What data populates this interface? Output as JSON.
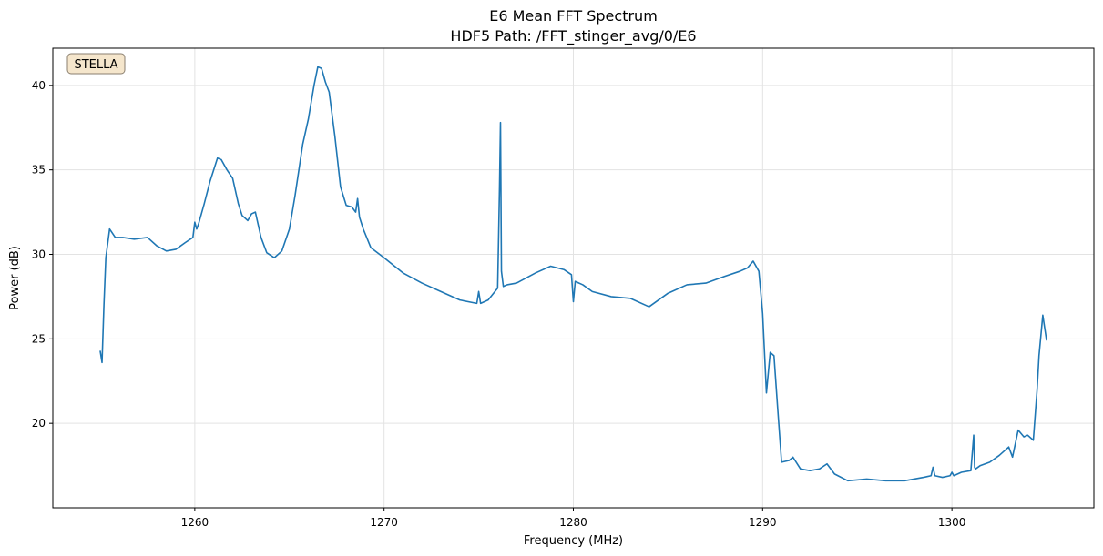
{
  "chart_data": {
    "type": "line",
    "title": "E6 Mean FFT Spectrum",
    "subtitle": "HDF5 Path: /FFT_stinger_avg/0/E6",
    "xlabel": "Frequency (MHz)",
    "ylabel": "Power (dB)",
    "xlim": [
      1252.5,
      1307.5
    ],
    "ylim": [
      15.0,
      42.2
    ],
    "xticks": [
      1260,
      1270,
      1280,
      1290,
      1300
    ],
    "yticks": [
      20,
      25,
      30,
      35,
      40
    ],
    "grid": true,
    "legend": "none",
    "annotation": "STELLA",
    "colors": {
      "line": "#1f77b4",
      "badge_fill": "#f5e6cc",
      "badge_stroke": "#8a7f6f",
      "grid": "#e3e3e3"
    },
    "series": [
      {
        "x": [
          1255.0,
          1255.1,
          1255.2,
          1255.3,
          1255.5,
          1255.8,
          1256.2,
          1256.8,
          1257.5,
          1258.0,
          1258.5,
          1259.0,
          1259.5,
          1259.9,
          1260.0,
          1260.1,
          1260.2,
          1260.5,
          1260.8,
          1261.0,
          1261.2,
          1261.4,
          1261.7,
          1262.0,
          1262.3,
          1262.5,
          1262.8,
          1263.0,
          1263.2,
          1263.5,
          1263.8,
          1264.2,
          1264.6,
          1265.0,
          1265.3,
          1265.7,
          1266.0,
          1266.3,
          1266.5,
          1266.7,
          1266.9,
          1267.1,
          1267.4,
          1267.7,
          1268.0,
          1268.3,
          1268.5,
          1268.6,
          1268.7,
          1268.9,
          1269.3,
          1270.0,
          1271.0,
          1272.0,
          1273.0,
          1274.0,
          1274.9,
          1275.0,
          1275.1,
          1275.5,
          1276.0,
          1276.1,
          1276.15,
          1276.2,
          1276.3,
          1276.5,
          1277.0,
          1278.0,
          1278.8,
          1279.5,
          1279.9,
          1280.0,
          1280.1,
          1280.5,
          1281.0,
          1282.0,
          1283.0,
          1284.0,
          1285.0,
          1286.0,
          1287.0,
          1288.0,
          1288.8,
          1289.2,
          1289.5,
          1289.8,
          1290.0,
          1290.2,
          1290.4,
          1290.6,
          1290.8,
          1291.0,
          1291.4,
          1291.6,
          1292.0,
          1292.5,
          1293.0,
          1293.4,
          1293.8,
          1294.5,
          1295.5,
          1296.5,
          1297.5,
          1298.5,
          1298.9,
          1299.0,
          1299.1,
          1299.5,
          1299.9,
          1300.0,
          1300.1,
          1300.5,
          1301.0,
          1301.15,
          1301.2,
          1301.25,
          1301.5,
          1302.0,
          1302.5,
          1303.0,
          1303.2,
          1303.5,
          1303.8,
          1304.0,
          1304.3,
          1304.5,
          1304.6,
          1304.8,
          1305.0
        ],
        "values": [
          24.3,
          23.6,
          27.0,
          29.8,
          31.5,
          31.0,
          31.0,
          30.9,
          31.0,
          30.5,
          30.2,
          30.3,
          30.7,
          31.0,
          31.9,
          31.5,
          31.8,
          33.0,
          34.3,
          35.0,
          35.7,
          35.6,
          35.0,
          34.5,
          33.0,
          32.3,
          32.0,
          32.4,
          32.5,
          31.0,
          30.1,
          29.8,
          30.2,
          31.5,
          33.5,
          36.5,
          38.0,
          40.0,
          41.1,
          41.0,
          40.2,
          39.6,
          37.0,
          34.0,
          32.9,
          32.8,
          32.5,
          33.3,
          32.2,
          31.5,
          30.4,
          29.8,
          28.9,
          28.3,
          27.8,
          27.3,
          27.1,
          27.8,
          27.1,
          27.3,
          28.0,
          34.0,
          37.8,
          29.0,
          28.1,
          28.2,
          28.3,
          28.9,
          29.3,
          29.1,
          28.8,
          27.2,
          28.4,
          28.2,
          27.8,
          27.5,
          27.4,
          26.9,
          27.7,
          28.2,
          28.3,
          28.7,
          29.0,
          29.2,
          29.6,
          29.0,
          26.5,
          21.8,
          24.2,
          24.0,
          20.8,
          17.7,
          17.8,
          18.0,
          17.3,
          17.2,
          17.3,
          17.6,
          17.0,
          16.6,
          16.7,
          16.6,
          16.6,
          16.8,
          16.9,
          17.4,
          16.9,
          16.8,
          16.9,
          17.1,
          16.9,
          17.1,
          17.2,
          19.3,
          17.4,
          17.3,
          17.5,
          17.7,
          18.1,
          18.6,
          18.0,
          19.6,
          19.2,
          19.3,
          19.0,
          22.0,
          24.0,
          26.4,
          24.9
        ]
      }
    ]
  }
}
